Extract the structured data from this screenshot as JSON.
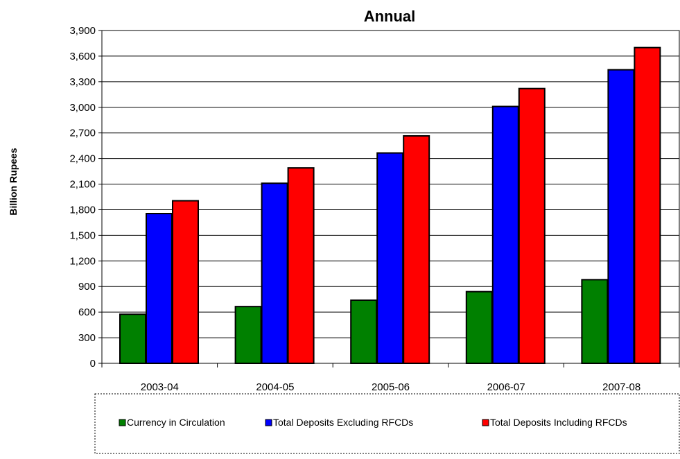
{
  "chart_data": {
    "type": "bar",
    "title": "Annual",
    "xlabel": "",
    "ylabel": "Billion Rupees",
    "ylim": [
      0,
      3900
    ],
    "yticks": [
      0,
      300,
      600,
      900,
      1200,
      1500,
      1800,
      2100,
      2400,
      2700,
      3000,
      3300,
      3600,
      3900
    ],
    "ytick_labels": [
      "0",
      "300",
      "600",
      "900",
      "1,200",
      "1,500",
      "1,800",
      "2,100",
      "2,400",
      "2,700",
      "3,000",
      "3,300",
      "3,600",
      "3,900"
    ],
    "grid": true,
    "legend_position": "bottom",
    "categories": [
      "2003-04",
      "2004-05",
      "2005-06",
      "2006-07",
      "2007-08"
    ],
    "series": [
      {
        "name": "Currency in Circulation",
        "color": "#008000",
        "values": [
          575,
          665,
          740,
          840,
          980
        ]
      },
      {
        "name": "Total Deposits Excluding RFCDs",
        "color": "#0000FF",
        "values": [
          1755,
          2110,
          2465,
          3010,
          3440
        ]
      },
      {
        "name": "Total Deposits Including RFCDs",
        "color": "#FF0000",
        "values": [
          1905,
          2290,
          2665,
          3220,
          3700
        ]
      }
    ]
  }
}
